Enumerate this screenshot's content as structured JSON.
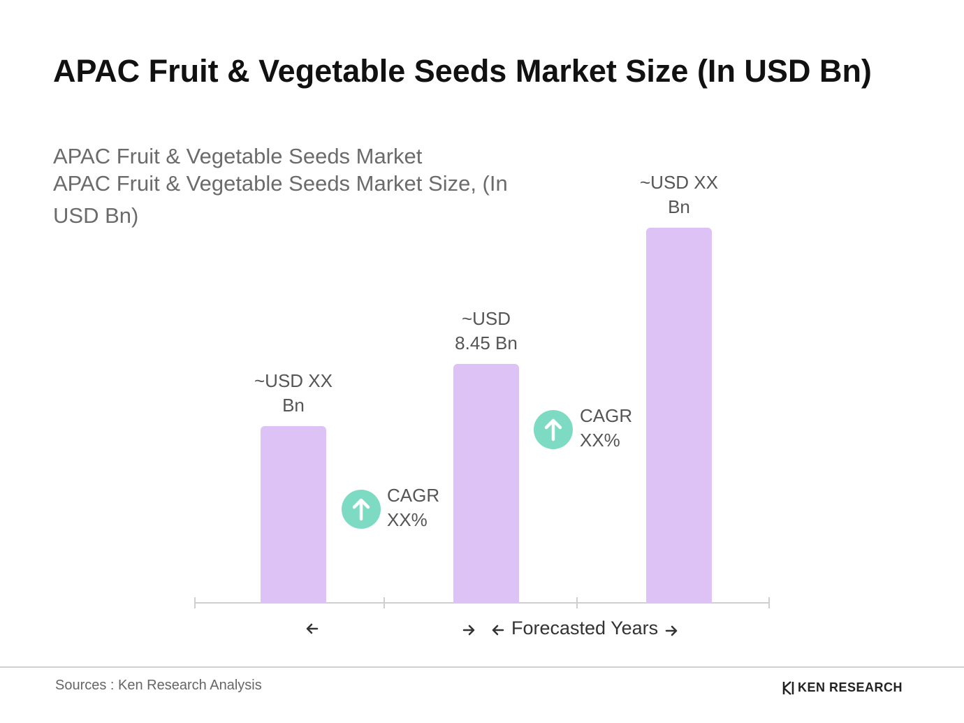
{
  "chart_data": {
    "type": "bar",
    "title": "APAC Fruit & Vegetable Seeds Market Size (In USD Bn)",
    "subtitle": [
      "APAC Fruit & Vegetable Seeds Market",
      "APAC Fruit & Vegetable Seeds Market Size, (In USD Bn)"
    ],
    "categories": [
      null,
      null,
      null
    ],
    "values": [
      6.25,
      8.45,
      13.27
    ],
    "value_labels": [
      "~USD XX Bn",
      "~USD 8.45 Bn",
      "~USD XX Bn"
    ],
    "color": "#dcc2f5",
    "annotations": [
      "CAGR XX%",
      "CAGR XX%"
    ],
    "x_label": "Forecasted Years",
    "source": "Sources : Ken Research Analysis",
    "logo": "KEN RESEARCH"
  }
}
